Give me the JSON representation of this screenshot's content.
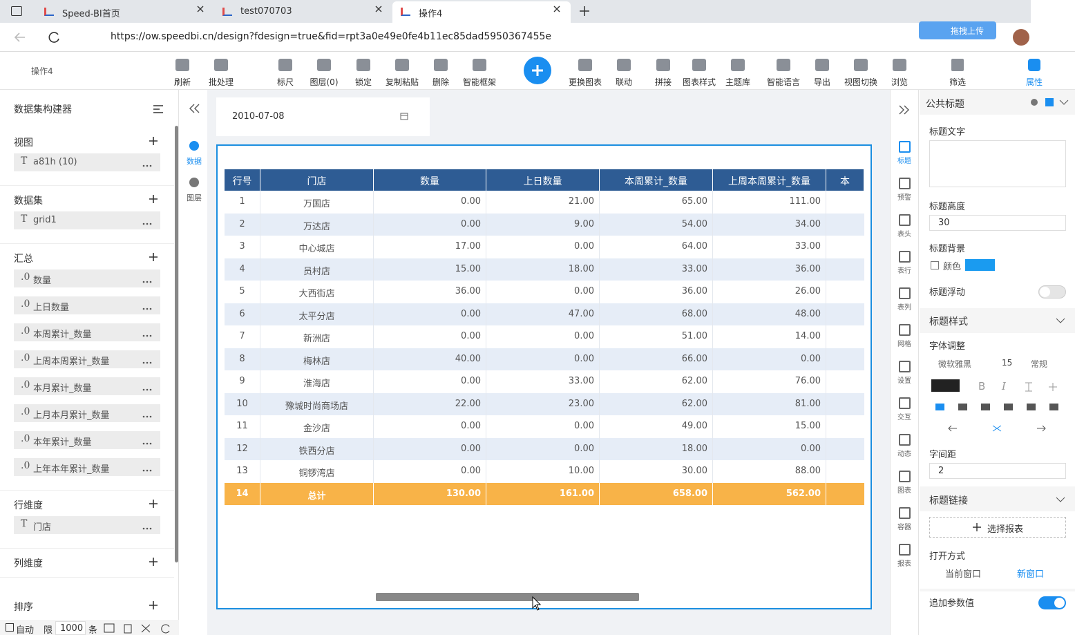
{
  "browser": {
    "tabs": [
      "Speed-BI首页",
      "test070703",
      "操作4"
    ],
    "url": "https://ow.speedbi.cn/design?fdesign=true&fid=rpt3a0e49e0fe4b11ec85dad5950367455e",
    "upload_button": "拖拽上传"
  },
  "toolbar": {
    "doc_name": "操作4",
    "items": [
      "刷新",
      "批处理",
      "标尺",
      "图层(0)",
      "锁定",
      "复制粘贴",
      "删除",
      "智能框架",
      "更换图表",
      "联动",
      "拼接",
      "图表样式",
      "主题库",
      "智能语言",
      "导出",
      "视图切换",
      "浏览"
    ],
    "right_items": [
      "筛选",
      "属性"
    ]
  },
  "left_panel": {
    "title": "数据集构建器",
    "sections": [
      {
        "name": "视图",
        "items": [
          {
            "type": "T",
            "label": "a81h (10)"
          }
        ]
      },
      {
        "name": "数据集",
        "items": [
          {
            "type": "T",
            "label": "grid1"
          }
        ]
      },
      {
        "name": "汇总",
        "items": [
          {
            "type": ".0",
            "label": "数量"
          },
          {
            "type": ".0",
            "label": "上日数量"
          },
          {
            "type": ".0",
            "label": "本周累计_数量"
          },
          {
            "type": ".0",
            "label": "上周本周累计_数量"
          },
          {
            "type": ".0",
            "label": "本月累计_数量"
          },
          {
            "type": ".0",
            "label": "上月本月累计_数量"
          },
          {
            "type": ".0",
            "label": "本年累计_数量"
          },
          {
            "type": ".0",
            "label": "上年本年累计_数量"
          }
        ]
      },
      {
        "name": "行维度",
        "items": [
          {
            "type": "T",
            "label": "门店"
          }
        ]
      },
      {
        "name": "列维度",
        "items": []
      },
      {
        "name": "排序",
        "items": []
      }
    ],
    "footer": {
      "auto": "自动",
      "limit_label": "限",
      "limit": "1000",
      "unit": "条"
    }
  },
  "side_tabs": [
    "数据",
    "图层"
  ],
  "canvas": {
    "date": "2010-07-08",
    "table": {
      "columns": [
        "行号",
        "门店",
        "数量",
        "上日数量",
        "本周累计_数量",
        "上周本周累计_数量",
        "本"
      ],
      "rows": [
        [
          "1",
          "万国店",
          "0.00",
          "21.00",
          "65.00",
          "111.00"
        ],
        [
          "2",
          "万达店",
          "0.00",
          "9.00",
          "54.00",
          "34.00"
        ],
        [
          "3",
          "中心城店",
          "17.00",
          "0.00",
          "64.00",
          "33.00"
        ],
        [
          "4",
          "员村店",
          "15.00",
          "18.00",
          "33.00",
          "36.00"
        ],
        [
          "5",
          "大西街店",
          "36.00",
          "0.00",
          "36.00",
          "26.00"
        ],
        [
          "6",
          "太平分店",
          "0.00",
          "47.00",
          "68.00",
          "48.00"
        ],
        [
          "7",
          "新洲店",
          "0.00",
          "0.00",
          "51.00",
          "14.00"
        ],
        [
          "8",
          "梅林店",
          "40.00",
          "0.00",
          "66.00",
          "0.00"
        ],
        [
          "9",
          "淮海店",
          "0.00",
          "33.00",
          "62.00",
          "76.00"
        ],
        [
          "10",
          "豫城时尚商场店",
          "22.00",
          "23.00",
          "62.00",
          "81.00"
        ],
        [
          "11",
          "金沙店",
          "0.00",
          "0.00",
          "49.00",
          "15.00"
        ],
        [
          "12",
          "铁西分店",
          "0.00",
          "0.00",
          "18.00",
          "0.00"
        ],
        [
          "13",
          "铜锣湾店",
          "0.00",
          "10.00",
          "30.00",
          "88.00"
        ],
        [
          "14",
          "总计",
          "130.00",
          "161.00",
          "658.00",
          "562.00"
        ]
      ]
    }
  },
  "right_icons": [
    "标题",
    "预警",
    "表头",
    "表行",
    "表列",
    "网格",
    "设置",
    "交互",
    "动态",
    "图表",
    "容器",
    "报表"
  ],
  "props": {
    "header": "公共标题",
    "title_text": "标题文字",
    "title_height": "标题高度",
    "height_value": "30",
    "title_bg": "标题背景",
    "color": "颜色",
    "title_float": "标题浮动",
    "title_style": "标题样式",
    "font_adjust": "字体调整",
    "font": "微软雅黑",
    "font_size": "15",
    "font_weight": "常规",
    "style_buttons": [
      "B",
      "I"
    ],
    "letter_spacing": "字间距",
    "spacing_value": "2",
    "title_link": "标题链接",
    "select_report": "选择报表",
    "open_mode": "打开方式",
    "current_window": "当前窗口",
    "new_window": "新窗口",
    "append_params": "追加参数值"
  }
}
